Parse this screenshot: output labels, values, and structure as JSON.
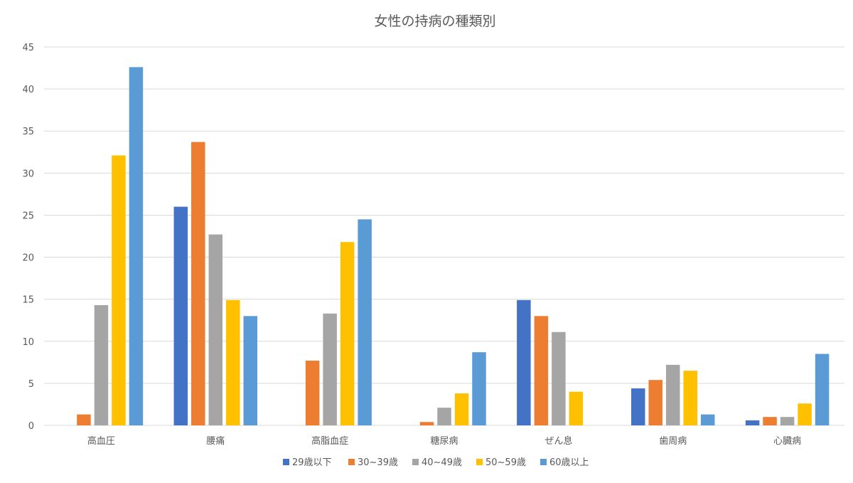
{
  "chart_data": {
    "type": "bar",
    "title": "女性の持病の種類別",
    "categories": [
      "高血圧",
      "腰痛",
      "高脂血症",
      "糖尿病",
      "ぜん息",
      "歯周病",
      "心臓病"
    ],
    "series": [
      {
        "name": "29歳以下",
        "color": "#4472C4",
        "values": [
          0,
          26.0,
          0,
          0,
          14.9,
          4.4,
          0.6
        ]
      },
      {
        "name": "30~39歳",
        "color": "#ED7D31",
        "values": [
          1.3,
          33.7,
          7.7,
          0.4,
          13.0,
          5.4,
          1.0
        ]
      },
      {
        "name": "40~49歳",
        "color": "#A5A5A5",
        "values": [
          14.3,
          22.7,
          13.3,
          2.1,
          11.1,
          7.2,
          1.0
        ]
      },
      {
        "name": "50~59歳",
        "color": "#FFC000",
        "values": [
          32.1,
          14.9,
          21.8,
          3.8,
          4.0,
          6.5,
          2.6
        ]
      },
      {
        "name": "60歳以上",
        "color": "#5B9BD5",
        "values": [
          42.6,
          13.0,
          24.5,
          8.7,
          0,
          1.3,
          8.5
        ]
      }
    ],
    "ylim": [
      0,
      45
    ],
    "yticks": [
      0,
      5,
      10,
      15,
      20,
      25,
      30,
      35,
      40,
      45
    ],
    "grid": true,
    "legend_position": "bottom"
  }
}
